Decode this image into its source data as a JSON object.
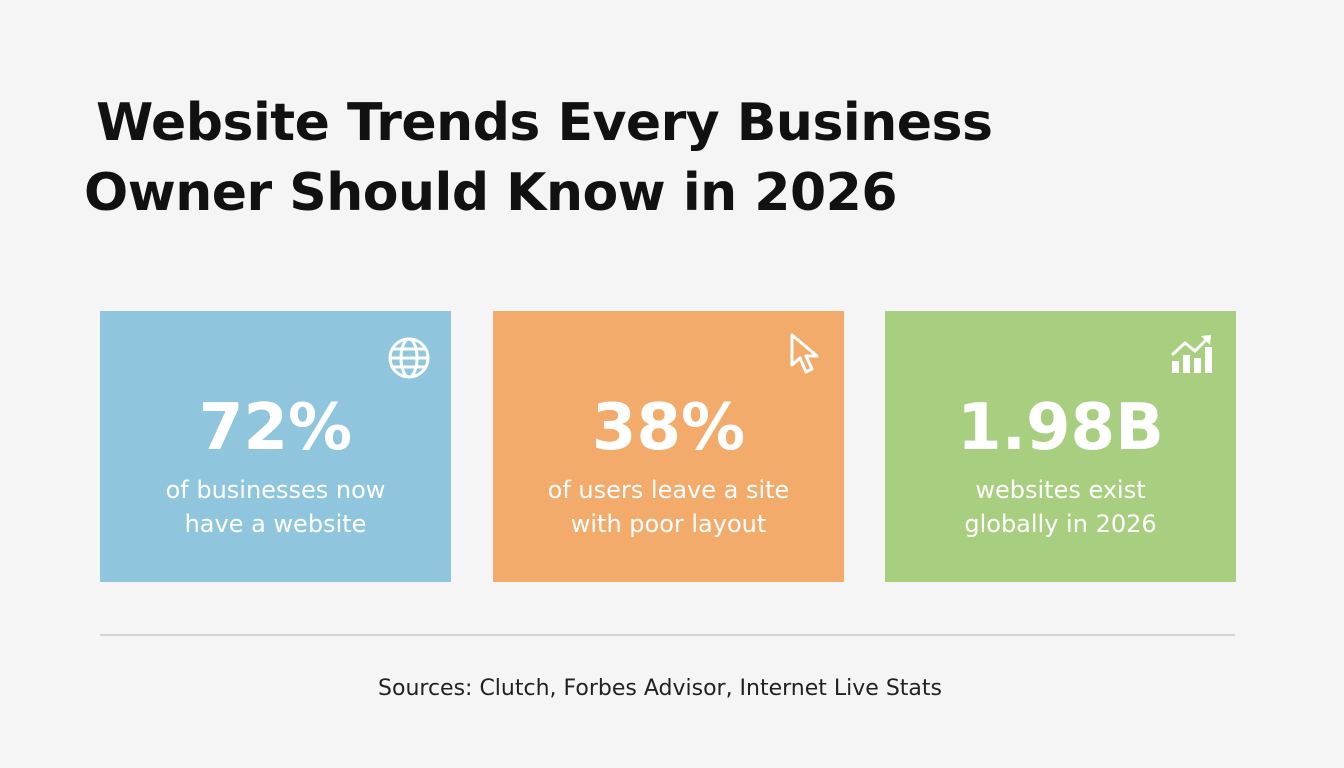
{
  "header": {
    "title_lines": [
      "Website Trends Every Business",
      "Owner Should Know in 2026"
    ]
  },
  "cards": [
    {
      "stat": "72%",
      "description_lines": [
        "of businesses now",
        "have a website"
      ],
      "color": "#8fc6dd"
    },
    {
      "stat": "38%",
      "description_lines": [
        "of users leave a site",
        "with poor layout"
      ],
      "color": "#f2ab6b"
    },
    {
      "stat": "1.98B",
      "description_lines": [
        "websites exist",
        "globally in 2026"
      ],
      "color": "#a7cf7f"
    }
  ],
  "footer": {
    "sources": "Sources: Clutch, Forbes Advisor, Internet Live Stats"
  }
}
